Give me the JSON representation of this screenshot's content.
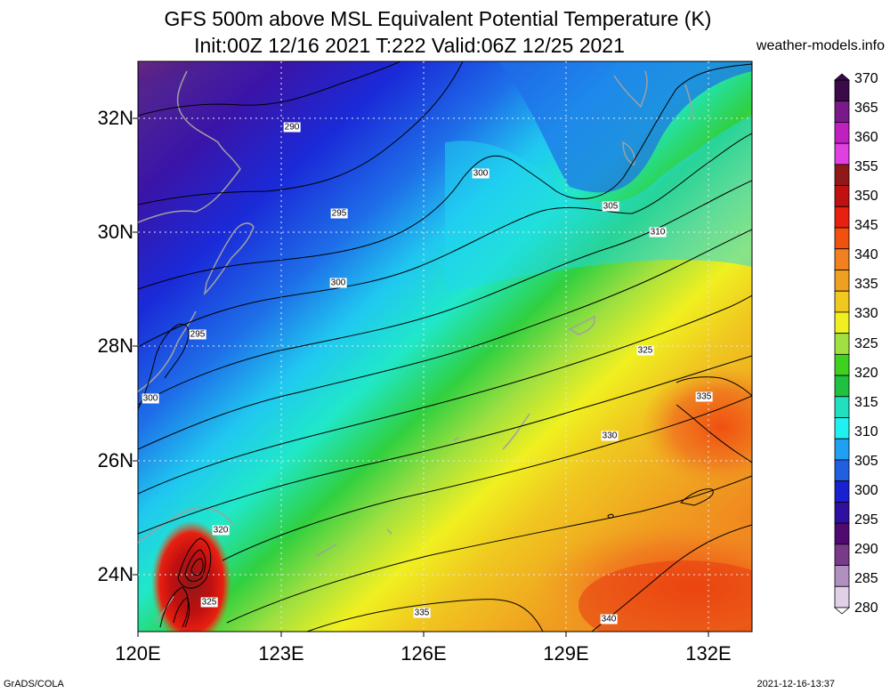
{
  "header": {
    "title_line1": "GFS 500m above MSL Equivalent Potential Temperature (K)",
    "title_line2": "Init:00Z 12/16 2021 T:222 Valid:06Z 12/25 2021",
    "site": "weather-models.info"
  },
  "axes": {
    "x_labels": [
      "120E",
      "123E",
      "126E",
      "129E",
      "132E"
    ],
    "y_labels": [
      "32N",
      "30N",
      "28N",
      "26N",
      "24N"
    ]
  },
  "colorbar": {
    "levels": [
      "370",
      "365",
      "360",
      "355",
      "350",
      "345",
      "340",
      "335",
      "330",
      "325",
      "320",
      "315",
      "310",
      "305",
      "300",
      "295",
      "290",
      "285",
      "280"
    ],
    "colors": [
      "#3a0a4a",
      "#7a1a8a",
      "#c020c0",
      "#e040e0",
      "#901818",
      "#c01010",
      "#e82010",
      "#f05010",
      "#f08020",
      "#f0a020",
      "#f0c820",
      "#f0f020",
      "#a0e040",
      "#40d020",
      "#20c040",
      "#20e0c0",
      "#20f0f0",
      "#20a0f0",
      "#2060e0",
      "#1a20d0",
      "#3010a0",
      "#500a70",
      "#7a3a8a",
      "#b090c0",
      "#e0d0e8"
    ]
  },
  "contour_labels": [
    {
      "text": "290"
    },
    {
      "text": "295"
    },
    {
      "text": "300"
    },
    {
      "text": "300"
    },
    {
      "text": "305"
    },
    {
      "text": "310"
    },
    {
      "text": "295"
    },
    {
      "text": "300"
    },
    {
      "text": "325"
    },
    {
      "text": "335"
    },
    {
      "text": "330"
    },
    {
      "text": "320"
    },
    {
      "text": "325"
    },
    {
      "text": "335"
    },
    {
      "text": "340"
    }
  ],
  "footer": {
    "left": "GrADS/COLA",
    "right": "2021-12-16-13:37"
  }
}
